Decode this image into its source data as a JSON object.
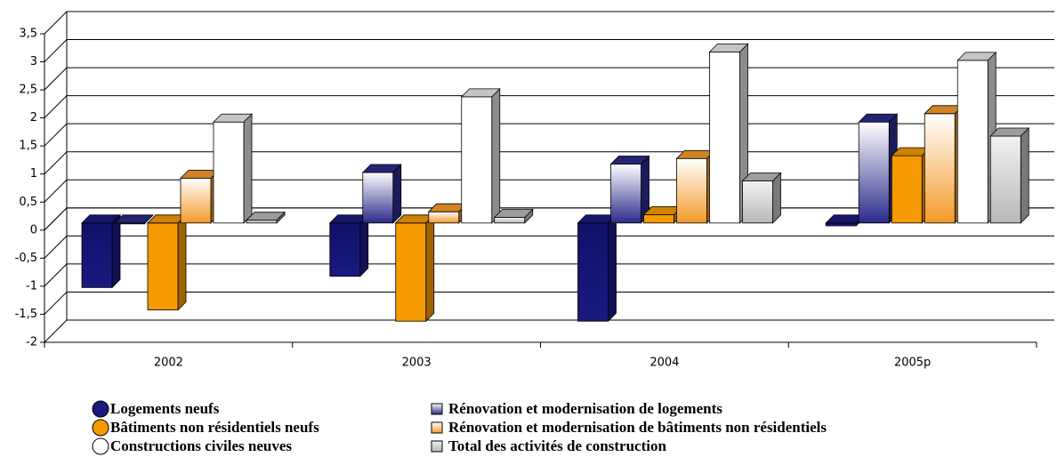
{
  "chart_data": {
    "type": "bar3d",
    "categories": [
      "2002",
      "2003",
      "2004",
      "2005p"
    ],
    "series": [
      {
        "name": "Logements neufs",
        "color": "#1a1a80",
        "values": [
          -1.15,
          -0.95,
          -1.75,
          -0.05
        ]
      },
      {
        "name": "Rénovation et modernisation de logements",
        "color": "#2a2a8a",
        "values": [
          0.0,
          0.9,
          1.05,
          1.8
        ]
      },
      {
        "name": "Bâtiments non résidentiels neufs",
        "color": "#f59a00",
        "values": [
          -1.55,
          -1.75,
          0.15,
          1.2
        ]
      },
      {
        "name": "Rénovation et modernisation de bâtiments non résidentiels",
        "color": "#f39a2a",
        "values": [
          0.8,
          0.2,
          1.15,
          1.95
        ]
      },
      {
        "name": "Constructions civiles neuves",
        "color": "#ffffff",
        "values": [
          1.8,
          2.25,
          3.05,
          2.9
        ]
      },
      {
        "name": "Total des activités de construction",
        "color": "#b8b8b8",
        "values": [
          0.05,
          0.1,
          0.75,
          1.55
        ]
      }
    ],
    "ylim": [
      -2,
      3.5
    ],
    "yticks": [
      {
        "value": -2,
        "label": "-2"
      },
      {
        "value": -1.5,
        "label": "-1,5"
      },
      {
        "value": -1,
        "label": "-1"
      },
      {
        "value": -0.5,
        "label": "-0,5"
      },
      0,
      {
        "value": 0.5,
        "label": "0,5"
      },
      1,
      {
        "value": 1.5,
        "label": "1,5"
      },
      2,
      {
        "value": 2.5,
        "label": "2,5"
      },
      3,
      {
        "value": 3.5,
        "label": "3,5"
      }
    ],
    "grid": true
  }
}
